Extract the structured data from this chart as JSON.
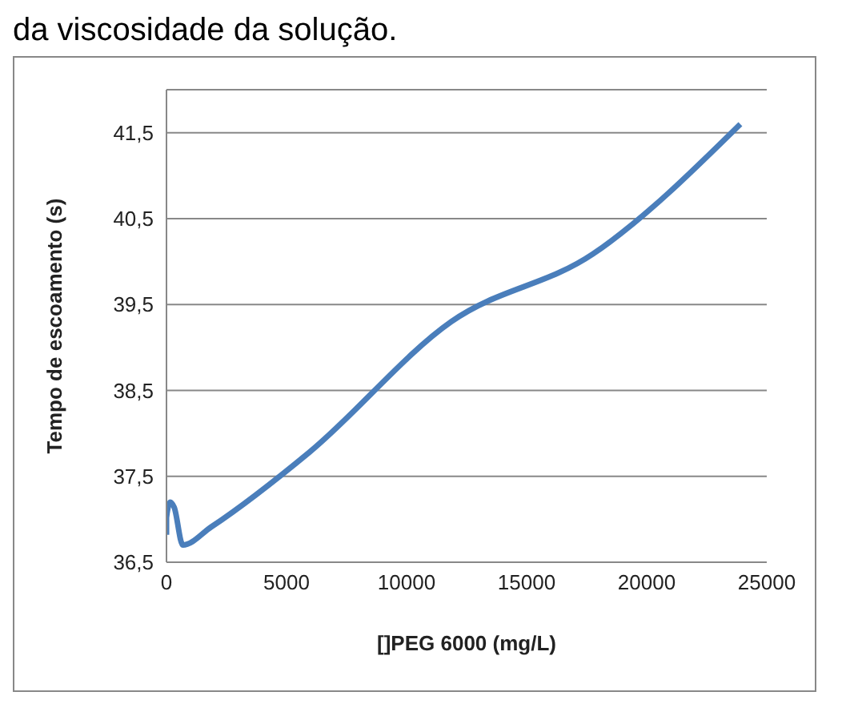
{
  "chart_data": {
    "type": "line",
    "title": "da viscosidade da solução.",
    "xlabel": "[]PEG 6000 (mg/L)",
    "ylabel": "Tempo de escoamento (s)",
    "x": [
      0,
      0,
      160,
      320,
      680,
      1860,
      5950,
      11860,
      17770,
      23900
    ],
    "series": [
      {
        "color": "#4a7ebb",
        "values": [
          36.82,
          37.02,
          37.2,
          37.14,
          36.7,
          36.91,
          37.78,
          39.3,
          40.09,
          41.6
        ]
      }
    ],
    "xlim": [
      0,
      25000
    ],
    "xticks": [
      0,
      5000,
      10000,
      15000,
      20000,
      25000
    ],
    "ylim": [
      36.5,
      42
    ],
    "yticks": [
      {
        "value": 36.5,
        "label": "36,5"
      },
      {
        "value": 37.5,
        "label": "37,5"
      },
      {
        "value": 38.5,
        "label": "38,5"
      },
      {
        "value": 39.5,
        "label": "39,5"
      },
      {
        "value": 40.5,
        "label": "40,5"
      },
      {
        "value": 41.5,
        "label": "41,5"
      }
    ],
    "grid": "y",
    "legend": false,
    "marker": "none",
    "line_style": "solid"
  }
}
